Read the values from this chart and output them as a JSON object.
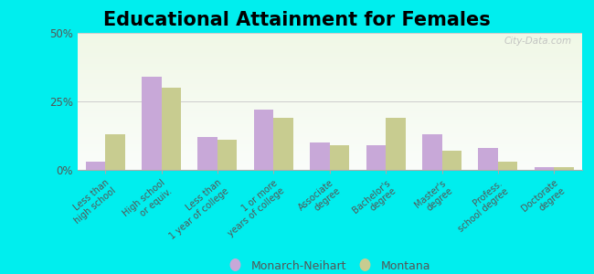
{
  "title": "Educational Attainment for Females",
  "categories": [
    "Less than\nhigh school",
    "High school\nor equiv.",
    "Less than\n1 year of college",
    "1 or more\nyears of college",
    "Associate\ndegree",
    "Bachelor's\ndegree",
    "Master's\ndegree",
    "Profess.\nschool degree",
    "Doctorate\ndegree"
  ],
  "monarch_neihart": [
    3,
    34,
    12,
    22,
    10,
    9,
    13,
    8,
    1
  ],
  "montana": [
    13,
    30,
    11,
    19,
    9,
    19,
    7,
    3,
    1
  ],
  "monarch_color": "#c8a8d8",
  "montana_color": "#c8cc90",
  "background_color": "#00eeee",
  "ylim": [
    0,
    50
  ],
  "yticks": [
    0,
    25,
    50
  ],
  "ytick_labels": [
    "0%",
    "25%",
    "50%"
  ],
  "legend_labels": [
    "Monarch-Neihart",
    "Montana"
  ],
  "watermark": "City-Data.com",
  "title_fontsize": 15,
  "label_fontsize": 7,
  "bar_width": 0.35
}
